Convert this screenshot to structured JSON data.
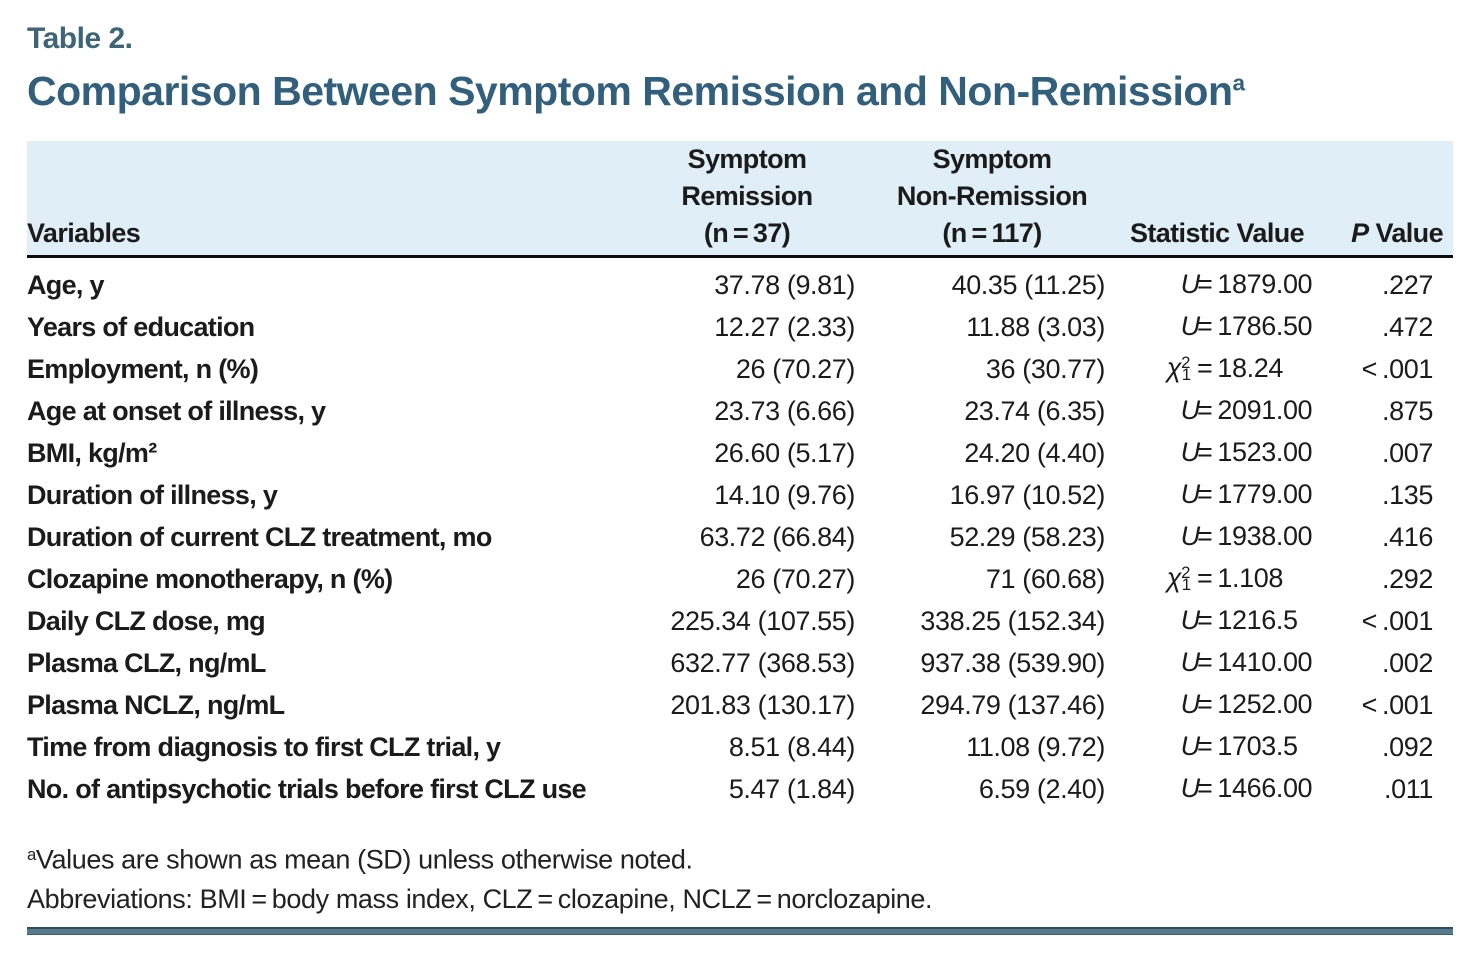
{
  "page": {
    "table_label": "Table 2.",
    "title": "Comparison Between Symptom Remission and Non-Remission",
    "title_sup": "a"
  },
  "table": {
    "headers": {
      "variables": "Variables",
      "remission": "Symptom\nRemission\n(n = 37)",
      "non_remission": "Symptom\nNon-Remission\n(n = 117)",
      "statistic": "Statistic Value",
      "p_italic": "P",
      "p_rest": " Value"
    },
    "rows": [
      {
        "label": "Age, y",
        "remission": "37.78 (9.81)",
        "non_remission": "40.35 (11.25)",
        "stat": {
          "symbol": "U",
          "sup": "",
          "sub": "",
          "value": "= 1879.00"
        },
        "p": ".227"
      },
      {
        "label": "Years of education",
        "remission": "12.27 (2.33)",
        "non_remission": "11.88 (3.03)",
        "stat": {
          "symbol": "U",
          "sup": "",
          "sub": "",
          "value": "= 1786.50"
        },
        "p": ".472"
      },
      {
        "label": "Employment, n (%)",
        "remission": "26 (70.27)",
        "non_remission": "36 (30.77)",
        "stat": {
          "symbol": "χ",
          "sup": "2",
          "sub": "1",
          "value": "= 18.24"
        },
        "p": "< .001"
      },
      {
        "label": "Age at onset of illness, y",
        "remission": "23.73 (6.66)",
        "non_remission": "23.74 (6.35)",
        "stat": {
          "symbol": "U",
          "sup": "",
          "sub": "",
          "value": "= 2091.00"
        },
        "p": ".875"
      },
      {
        "label": "BMI, kg/m²",
        "remission": "26.60 (5.17)",
        "non_remission": "24.20 (4.40)",
        "stat": {
          "symbol": "U",
          "sup": "",
          "sub": "",
          "value": "= 1523.00"
        },
        "p": ".007"
      },
      {
        "label": "Duration of illness, y",
        "remission": "14.10 (9.76)",
        "non_remission": "16.97 (10.52)",
        "stat": {
          "symbol": "U",
          "sup": "",
          "sub": "",
          "value": "= 1779.00"
        },
        "p": ".135"
      },
      {
        "label": "Duration of current CLZ treatment, mo",
        "remission": "63.72 (66.84)",
        "non_remission": "52.29 (58.23)",
        "stat": {
          "symbol": "U",
          "sup": "",
          "sub": "",
          "value": "= 1938.00"
        },
        "p": ".416"
      },
      {
        "label": "Clozapine monotherapy, n (%)",
        "remission": "26 (70.27)",
        "non_remission": "71 (60.68)",
        "stat": {
          "symbol": "χ",
          "sup": "2",
          "sub": "1",
          "value": "= 1.108"
        },
        "p": ".292"
      },
      {
        "label": "Daily CLZ dose, mg",
        "remission": "225.34 (107.55)",
        "non_remission": "338.25 (152.34)",
        "stat": {
          "symbol": "U",
          "sup": "",
          "sub": "",
          "value": "= 1216.5"
        },
        "p": "< .001"
      },
      {
        "label": "Plasma CLZ, ng/mL",
        "remission": "632.77 (368.53)",
        "non_remission": "937.38 (539.90)",
        "stat": {
          "symbol": "U",
          "sup": "",
          "sub": "",
          "value": "= 1410.00"
        },
        "p": ".002"
      },
      {
        "label": "Plasma NCLZ, ng/mL",
        "remission": "201.83 (130.17)",
        "non_remission": "294.79 (137.46)",
        "stat": {
          "symbol": "U",
          "sup": "",
          "sub": "",
          "value": "= 1252.00"
        },
        "p": "< .001"
      },
      {
        "label": "Time from diagnosis to first CLZ trial, y",
        "remission": "8.51 (8.44)",
        "non_remission": "11.08 (9.72)",
        "stat": {
          "symbol": "U",
          "sup": "",
          "sub": "",
          "value": "= 1703.5"
        },
        "p": ".092"
      },
      {
        "label": "No. of antipsychotic trials before first CLZ use",
        "remission": "5.47 (1.84)",
        "non_remission": "6.59 (2.40)",
        "stat": {
          "symbol": "U",
          "sup": "",
          "sub": "",
          "value": "= 1466.00"
        },
        "p": ".011"
      }
    ]
  },
  "footnotes": {
    "note_a_sup": "a",
    "note_a": "Values are shown as mean (SD) unless otherwise noted.",
    "abbreviations": "Abbreviations: BMI = body mass index, CLZ = clozapine, NCLZ = norclozapine."
  },
  "colors": {
    "title_blue": "#32607c",
    "header_bg": "#e0eef8",
    "bottom_rule": "#587a8d",
    "text": "#1b1b1b"
  }
}
